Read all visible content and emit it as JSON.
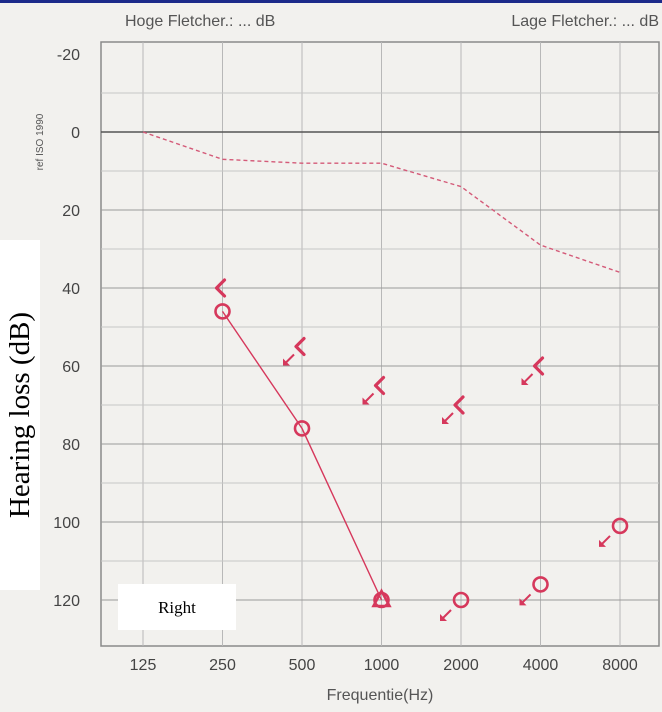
{
  "header": {
    "left": "Hoge Fletcher.: ... dB",
    "right": "Lage Fletcher.: ... dB"
  },
  "ref_label": "ref ISO 1990",
  "side_label": "Right",
  "colors": {
    "marks": "#d6385c",
    "frame": "#1c2a8a"
  },
  "chart_data": {
    "type": "line",
    "title": "",
    "xlabel": "Frequentie(Hz)",
    "ylabel": "Hearing loss (dB)",
    "x_scale": "log2",
    "x_ticks": [
      125,
      250,
      500,
      1000,
      2000,
      4000,
      8000
    ],
    "x_tick_labels": [
      "125",
      "250",
      "500",
      "1000",
      "2000",
      "4000",
      "8000"
    ],
    "y_ticks": [
      -20,
      0,
      20,
      40,
      60,
      80,
      100,
      120
    ],
    "y_tick_labels": [
      "-20",
      "0",
      "20",
      "40",
      "60",
      "80",
      "100",
      "120"
    ],
    "ylim": [
      -20,
      130
    ],
    "y_inverted": true,
    "grid": true,
    "reference_curve": {
      "style": "dashed",
      "x": [
        125,
        250,
        500,
        1000,
        2000,
        4000,
        8000
      ],
      "y": [
        0,
        7,
        8,
        8,
        14,
        29,
        36
      ]
    },
    "series": [
      {
        "marker": "circle",
        "connected": true,
        "x": [
          250,
          500,
          1000
        ],
        "y": [
          46,
          76,
          120
        ]
      },
      {
        "marker": "triangle",
        "connected": true,
        "x": [
          1000
        ],
        "y": [
          120
        ]
      },
      {
        "marker": "circle",
        "connected": false,
        "no_response": true,
        "x": [
          2000,
          4000,
          8000
        ],
        "y": [
          120,
          116,
          101
        ]
      },
      {
        "marker": "bracket",
        "connected": false,
        "x": [
          250,
          500,
          1000,
          2000,
          4000
        ],
        "y": [
          40,
          55,
          65,
          70,
          60
        ]
      }
    ]
  }
}
